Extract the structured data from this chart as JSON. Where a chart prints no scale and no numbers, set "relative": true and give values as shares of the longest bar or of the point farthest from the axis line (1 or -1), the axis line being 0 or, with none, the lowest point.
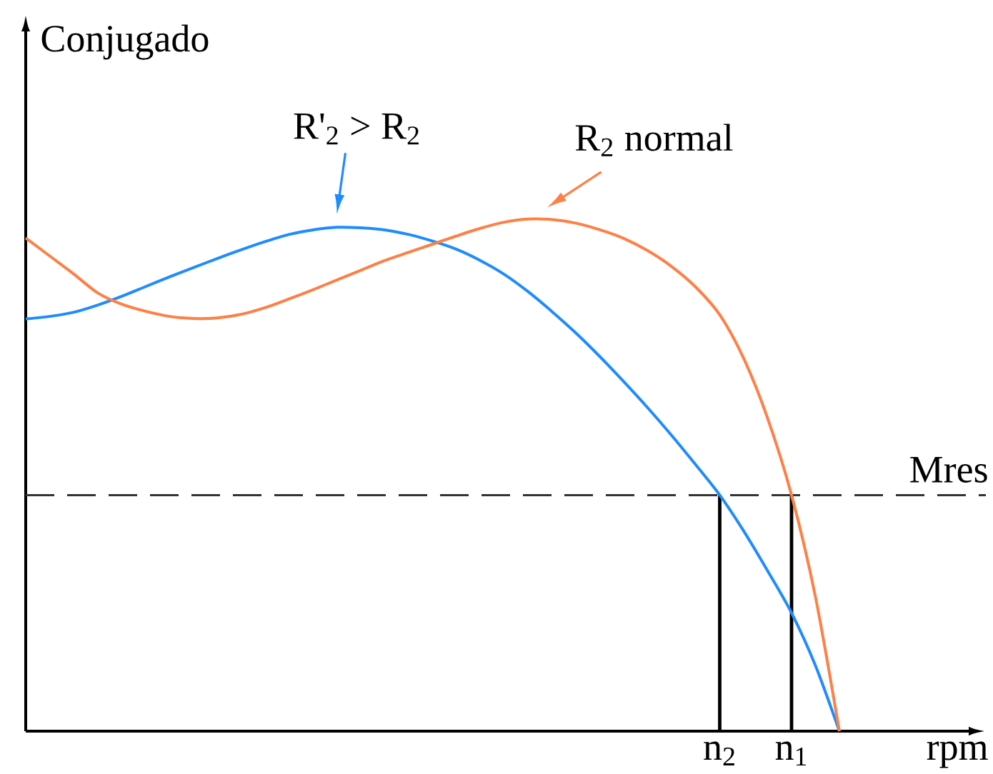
{
  "chart_data": {
    "type": "line",
    "relative": true,
    "xlabel": "rpm",
    "ylabel": "Conjugado",
    "line_style": "solid",
    "categories": [
      null,
      null,
      null,
      null,
      null,
      null,
      null,
      null,
      null,
      null,
      null,
      null,
      null,
      null,
      null,
      null,
      null,
      null,
      null,
      null,
      null,
      null,
      null,
      null,
      null,
      null,
      null,
      null,
      null,
      "n$_{2}$",
      null,
      null,
      "n$_{1}$",
      null,
      null
    ],
    "series": [
      {
        "color": "#1e8cff",
        "values": [
          0.805,
          0.81,
          0.818,
          0.832,
          0.849,
          0.868,
          0.887,
          0.905,
          0.923,
          0.94,
          0.956,
          0.97,
          0.979,
          0.984,
          0.983,
          0.979,
          0.97,
          0.957,
          0.941,
          0.919,
          0.892,
          0.858,
          0.819,
          0.777,
          0.731,
          0.682,
          0.631,
          0.577,
          0.52,
          0.461,
          0.391,
          0.313,
          0.231,
          0.128,
          0
        ]
      },
      {
        "color": "#ff7f45",
        "values": [
          0.963,
          0.928,
          0.893,
          0.856,
          0.834,
          0.82,
          0.81,
          0.806,
          0.807,
          0.814,
          0.827,
          0.844,
          0.862,
          0.881,
          0.9,
          0.919,
          0.935,
          0.951,
          0.967,
          0.982,
          0.994,
          1.0,
          0.999,
          0.992,
          0.979,
          0.962,
          0.938,
          0.907,
          0.867,
          0.813,
          0.728,
          0.611,
          0.461,
          0.262,
          0
        ]
      }
    ],
    "ref_lines": [
      {
        "axis": "y",
        "value": 0.461,
        "label": "Mres",
        "line_style": "dashed",
        "color": "#333333"
      },
      {
        "axis": "x",
        "value": "n$_{2}$",
        "line_style": "solid",
        "color": "#000000"
      },
      {
        "axis": "x",
        "value": "n$_{1}$",
        "line_style": "solid",
        "color": "#000000"
      }
    ],
    "annotations": [
      "R'$_{2}$ > R$_{2}$",
      "R$_{2}$ normal"
    ]
  }
}
